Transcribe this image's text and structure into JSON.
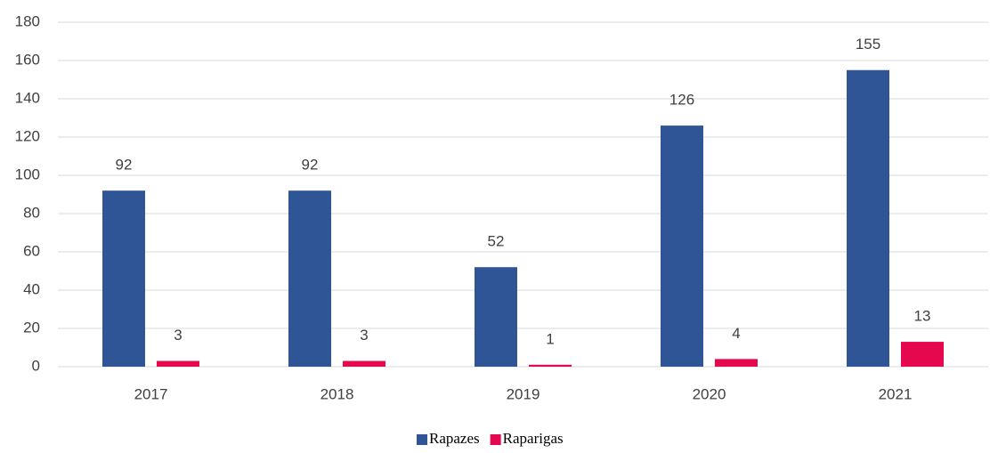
{
  "chart_data": {
    "type": "bar",
    "categories": [
      "2017",
      "2018",
      "2019",
      "2020",
      "2021"
    ],
    "series": [
      {
        "name": "Rapazes",
        "color": "#2f5597",
        "values": [
          92,
          92,
          52,
          126,
          155
        ]
      },
      {
        "name": "Raparigas",
        "color": "#e6084e",
        "values": [
          3,
          3,
          1,
          4,
          13
        ]
      }
    ],
    "ylim": [
      0,
      180
    ],
    "yticks": [
      0,
      20,
      40,
      60,
      80,
      100,
      120,
      140,
      160,
      180
    ],
    "grid": true,
    "legend": "bottom"
  }
}
